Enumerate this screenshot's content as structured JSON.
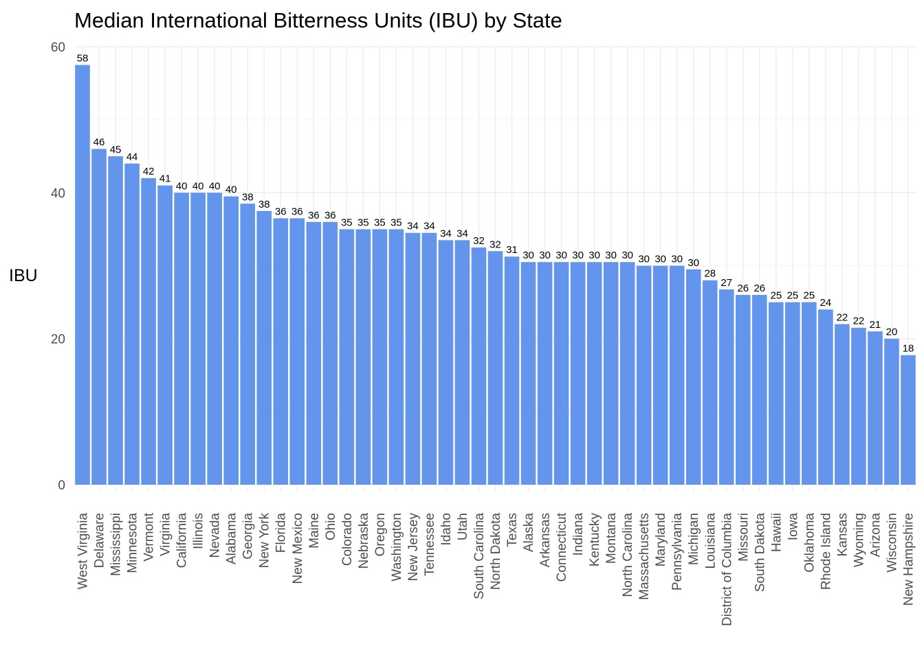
{
  "chart_data": {
    "type": "bar",
    "title": "Median International Bitterness Units (IBU) by State",
    "xlabel": "",
    "ylabel": "IBU",
    "ylim": [
      0,
      60
    ],
    "yticks": [
      0,
      20,
      40,
      60
    ],
    "grid": true,
    "bar_color": "#6495ED",
    "categories": [
      "West Virginia",
      "Delaware",
      "Mississippi",
      "Minnesota",
      "Vermont",
      "Virginia",
      "California",
      "Illinois",
      "Nevada",
      "Alabama",
      "Georgia",
      "New York",
      "Florida",
      "New Mexico",
      "Maine",
      "Ohio",
      "Colorado",
      "Nebraska",
      "Oregon",
      "Washington",
      "New Jersey",
      "Tennessee",
      "Idaho",
      "Utah",
      "South Carolina",
      "North Dakota",
      "Texas",
      "Alaska",
      "Arkansas",
      "Connecticut",
      "Indiana",
      "Kentucky",
      "Montana",
      "North Carolina",
      "Massachusetts",
      "Maryland",
      "Pennsylvania",
      "Michigan",
      "Louisiana",
      "District of Columbia",
      "Missouri",
      "South Dakota",
      "Hawaii",
      "Iowa",
      "Oklahoma",
      "Rhode Island",
      "Kansas",
      "Wyoming",
      "Arizona",
      "Wisconsin",
      "New Hampshire"
    ],
    "values": [
      57.5,
      46,
      45,
      44,
      42,
      41,
      40,
      40,
      40,
      39.5,
      38.5,
      37.5,
      36.5,
      36.5,
      36,
      36,
      35,
      35,
      35,
      35,
      34.5,
      34.5,
      33.5,
      33.5,
      32.5,
      32,
      31.25,
      30.5,
      30.5,
      30.5,
      30.5,
      30.5,
      30.5,
      30.5,
      30,
      30,
      30,
      29.5,
      28,
      26.75,
      26,
      26,
      25,
      25,
      25,
      24,
      22,
      21.5,
      21,
      20,
      17.75
    ],
    "labels": [
      "58",
      "46",
      "45",
      "44",
      "42",
      "41",
      "40",
      "40",
      "40",
      "40",
      "38",
      "38",
      "36",
      "36",
      "36",
      "36",
      "35",
      "35",
      "35",
      "35",
      "34",
      "34",
      "34",
      "34",
      "32",
      "32",
      "31",
      "30",
      "30",
      "30",
      "30",
      "30",
      "30",
      "30",
      "30",
      "30",
      "30",
      "30",
      "28",
      "27",
      "26",
      "26",
      "25",
      "25",
      "25",
      "24",
      "22",
      "22",
      "21",
      "20",
      "18"
    ]
  }
}
